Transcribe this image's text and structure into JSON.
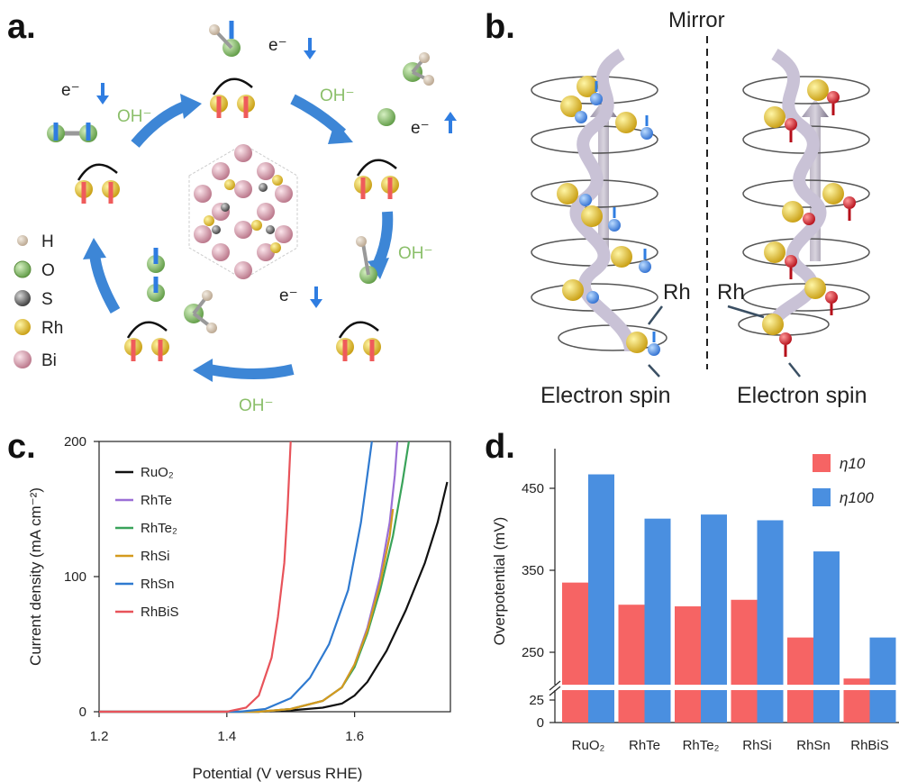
{
  "panel_labels": {
    "a": "a.",
    "b": "b.",
    "c": "c.",
    "d": "d."
  },
  "panel_a": {
    "legend": [
      {
        "label": "H",
        "color": "#cdbba6"
      },
      {
        "label": "O",
        "color": "#8fbf6f"
      },
      {
        "label": "S",
        "color": "#555555"
      },
      {
        "label": "Rh",
        "color": "#e6c62a"
      },
      {
        "label": "Bi",
        "color": "#e9b7c3"
      }
    ],
    "oh_label": "OH⁻",
    "electron_label": "e⁻",
    "colors": {
      "arrow": "#3d86d6",
      "spin_down": "#ef5b5b",
      "spin_up": "#2f7de1",
      "oh_text": "#8bbf6a"
    }
  },
  "panel_b": {
    "mirror_label": "Mirror",
    "rh_label": "Rh",
    "spin_label": "Electron spin"
  },
  "chart_data": [
    {
      "type": "line",
      "xlabel": "Potential (V versus RHE)",
      "ylabel": "Current density (mA cm⁻²)",
      "xlim": [
        1.2,
        1.75
      ],
      "ylim": [
        0,
        200
      ],
      "xticks": [
        1.2,
        1.4,
        1.6
      ],
      "yticks": [
        0,
        100,
        200
      ],
      "legend_position": "top-left",
      "series": [
        {
          "name": "RuO₂",
          "color": "#111111",
          "points": [
            [
              1.2,
              0
            ],
            [
              1.45,
              0
            ],
            [
              1.5,
              1
            ],
            [
              1.55,
              3
            ],
            [
              1.58,
              6
            ],
            [
              1.6,
              12
            ],
            [
              1.62,
              22
            ],
            [
              1.65,
              45
            ],
            [
              1.68,
              75
            ],
            [
              1.71,
              110
            ],
            [
              1.73,
              140
            ],
            [
              1.745,
              170
            ]
          ]
        },
        {
          "name": "RhTe",
          "color": "#9b6fd6",
          "points": [
            [
              1.2,
              0
            ],
            [
              1.45,
              0
            ],
            [
              1.5,
              2
            ],
            [
              1.55,
              8
            ],
            [
              1.58,
              18
            ],
            [
              1.6,
              35
            ],
            [
              1.62,
              62
            ],
            [
              1.64,
              100
            ],
            [
              1.655,
              140
            ],
            [
              1.663,
              175
            ],
            [
              1.667,
              200
            ]
          ]
        },
        {
          "name": "RhTe₂",
          "color": "#3aa35a",
          "points": [
            [
              1.2,
              0
            ],
            [
              1.45,
              0
            ],
            [
              1.5,
              2
            ],
            [
              1.55,
              8
            ],
            [
              1.58,
              18
            ],
            [
              1.6,
              33
            ],
            [
              1.62,
              58
            ],
            [
              1.64,
              90
            ],
            [
              1.66,
              130
            ],
            [
              1.675,
              170
            ],
            [
              1.685,
              200
            ]
          ]
        },
        {
          "name": "RhSi",
          "color": "#d49a1e",
          "points": [
            [
              1.2,
              0
            ],
            [
              1.45,
              0
            ],
            [
              1.5,
              2
            ],
            [
              1.55,
              8
            ],
            [
              1.58,
              18
            ],
            [
              1.6,
              35
            ],
            [
              1.62,
              60
            ],
            [
              1.64,
              95
            ],
            [
              1.655,
              130
            ],
            [
              1.66,
              150
            ]
          ]
        },
        {
          "name": "RhSn",
          "color": "#2f7ad0",
          "points": [
            [
              1.2,
              0
            ],
            [
              1.42,
              0
            ],
            [
              1.46,
              2
            ],
            [
              1.5,
              10
            ],
            [
              1.53,
              25
            ],
            [
              1.56,
              50
            ],
            [
              1.59,
              90
            ],
            [
              1.61,
              140
            ],
            [
              1.62,
              175
            ],
            [
              1.627,
              200
            ]
          ]
        },
        {
          "name": "RhBiS",
          "color": "#e8535a",
          "points": [
            [
              1.2,
              0
            ],
            [
              1.4,
              0
            ],
            [
              1.43,
              3
            ],
            [
              1.45,
              12
            ],
            [
              1.47,
              40
            ],
            [
              1.48,
              70
            ],
            [
              1.49,
              110
            ],
            [
              1.495,
              150
            ],
            [
              1.5,
              200
            ]
          ]
        }
      ]
    },
    {
      "type": "bar",
      "ylabel": "Overpotential (mV)",
      "categories": [
        "RuO₂",
        "RhTe",
        "RhTe₂",
        "RhSi",
        "RhSn",
        "RhBiS"
      ],
      "ylim": [
        0,
        500
      ],
      "y_break": [
        25,
        210
      ],
      "yticks": [
        0,
        25,
        250,
        350,
        450
      ],
      "legend_position": "top-right",
      "series": [
        {
          "name": "η10",
          "color": "#f66464",
          "values": [
            335,
            308,
            306,
            314,
            268,
            218
          ]
        },
        {
          "name": "η100",
          "color": "#4a8fe0",
          "values": [
            467,
            413,
            418,
            411,
            373,
            268
          ]
        }
      ]
    }
  ]
}
